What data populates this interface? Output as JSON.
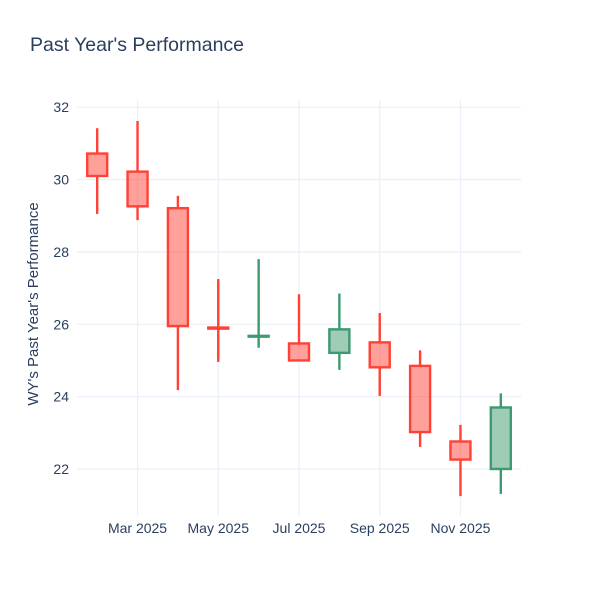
{
  "title": "Past Year's Performance",
  "y_axis": {
    "title": "WY's Past Year's Performance",
    "tick_values": [
      22,
      24,
      26,
      28,
      30,
      32
    ],
    "range": [
      20.7,
      32.2
    ]
  },
  "x_axis": {
    "tick_labels": [
      "Mar 2025",
      "May 2025",
      "Jul 2025",
      "Sep 2025",
      "Nov 2025"
    ],
    "tick_indices": [
      1,
      3,
      5,
      7,
      9
    ]
  },
  "colors": {
    "increasing": "#3D9970",
    "decreasing": "#FF4136",
    "fill_opacity": 0.5,
    "grid": "#EBF0F8",
    "text": "#2A3F5F",
    "background": "#FFFFFF"
  },
  "chart_data": {
    "type": "candlestick",
    "title": "Past Year's Performance",
    "ylabel": "WY's Past Year's Performance",
    "x": [
      "Feb 2025",
      "Mar 2025",
      "Apr 2025",
      "May 2025",
      "Jun 2025",
      "Jul 2025",
      "Aug 2025",
      "Sep 2025",
      "Oct 2025",
      "Nov 2025",
      "Dec 2025"
    ],
    "open": [
      30.72,
      30.22,
      29.21,
      25.91,
      25.66,
      25.47,
      25.21,
      25.5,
      24.85,
      22.76,
      22.0
    ],
    "high": [
      31.42,
      31.62,
      29.55,
      27.25,
      27.8,
      26.83,
      26.85,
      26.31,
      25.28,
      23.22,
      24.09
    ],
    "low": [
      29.05,
      28.88,
      24.18,
      24.96,
      25.35,
      24.99,
      24.74,
      24.02,
      22.61,
      21.25,
      21.31
    ],
    "close": [
      30.1,
      29.26,
      25.95,
      25.88,
      25.68,
      25.0,
      25.86,
      24.81,
      23.02,
      22.26,
      23.7
    ],
    "ylim": [
      20.7,
      32.2
    ],
    "grid": true,
    "legend": false
  }
}
